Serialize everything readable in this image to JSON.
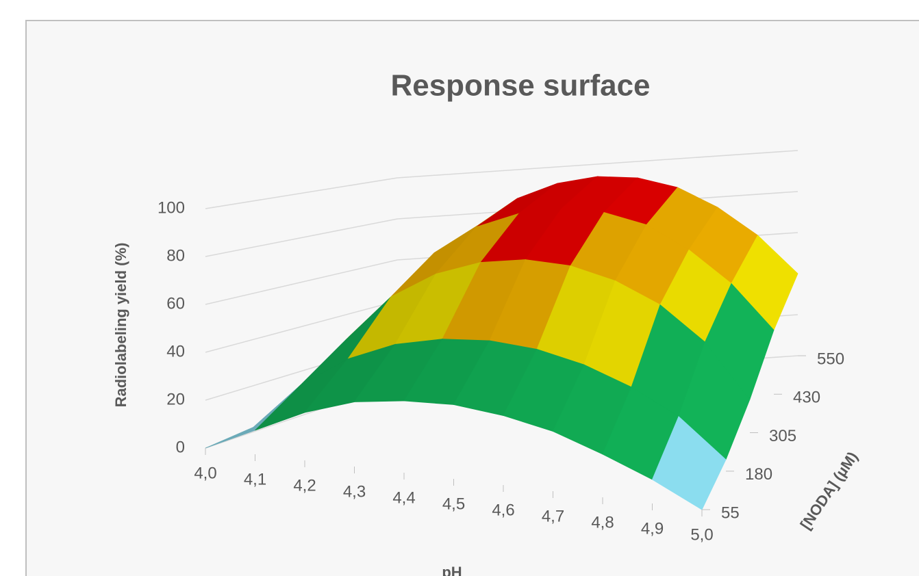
{
  "chart_data": {
    "type": "surface",
    "title": "Response surface",
    "x_label": "pH",
    "depth_label": "[NODA] (µM)",
    "z_label": "Radiolabeling yield (%)",
    "categories": [
      "4,0",
      "4,1",
      "4,2",
      "4,3",
      "4,4",
      "4,5",
      "4,6",
      "4,7",
      "4,8",
      "4,9",
      "5,0"
    ],
    "series": [
      {
        "name": "55",
        "values": [
          0,
          10,
          20,
          27,
          30,
          31,
          29,
          25,
          18,
          10,
          0
        ]
      },
      {
        "name": "180",
        "values": [
          2,
          22,
          35,
          43,
          47,
          48,
          46,
          41,
          33,
          22,
          5
        ]
      },
      {
        "name": "305",
        "values": [
          5,
          35,
          55,
          66,
          72,
          74,
          72,
          66,
          56,
          40,
          15
        ]
      },
      {
        "name": "430",
        "values": [
          8,
          45,
          68,
          80,
          86,
          88,
          86,
          80,
          68,
          52,
          30
        ]
      },
      {
        "name": "550",
        "values": [
          10,
          50,
          74,
          86,
          92,
          94,
          92,
          86,
          75,
          60,
          40
        ]
      }
    ],
    "zlim": [
      0,
      100
    ],
    "zticks": [
      0,
      20,
      40,
      60,
      80,
      100
    ],
    "band_colors": [
      "#8fe3f5",
      "#12b85a",
      "#f5e600",
      "#f5b400",
      "#f00000"
    ],
    "grid": true
  }
}
